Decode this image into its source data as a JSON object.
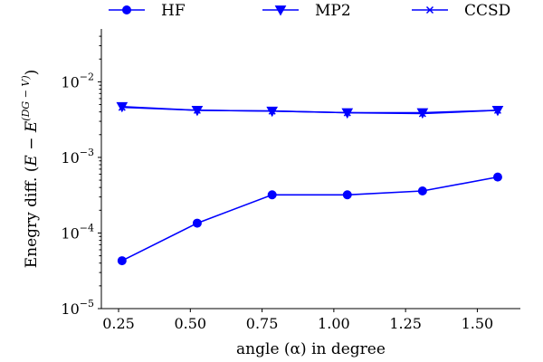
{
  "chart_data": {
    "type": "line",
    "xlabel": "angle (α) in degree",
    "ylabel": "Enegry diff. (E − E^(DG−V))",
    "ylabel_parts": {
      "main": "Enegry diff. (",
      "e1": "E",
      "minus": " − ",
      "e2": "E",
      "sup": "(DG − V)",
      "close": ")"
    },
    "yscale": "log",
    "xlim": [
      0.19,
      1.65
    ],
    "ylim": [
      1e-05,
      0.05
    ],
    "grid": false,
    "legend_position": "top, above plot",
    "xticks": [
      {
        "value": 0.25,
        "label": "0.25"
      },
      {
        "value": 0.5,
        "label": "0.50"
      },
      {
        "value": 0.75,
        "label": "0.75"
      },
      {
        "value": 1.0,
        "label": "1.00"
      },
      {
        "value": 1.25,
        "label": "1.25"
      },
      {
        "value": 1.5,
        "label": "1.50"
      }
    ],
    "yticks": [
      {
        "value": 1e-05,
        "base": "10",
        "exp": "−5"
      },
      {
        "value": 0.0001,
        "base": "10",
        "exp": "−4"
      },
      {
        "value": 0.001,
        "base": "10",
        "exp": "−3"
      },
      {
        "value": 0.01,
        "base": "10",
        "exp": "−2"
      }
    ],
    "x": [
      0.262,
      0.524,
      0.785,
      1.047,
      1.309,
      1.571
    ],
    "series": [
      {
        "name": "HF",
        "marker": "circle",
        "color": "#0000ff",
        "values": [
          4.3e-05,
          0.000135,
          0.00032,
          0.00032,
          0.00036,
          0.00055
        ]
      },
      {
        "name": "MP2",
        "marker": "triangle-down",
        "color": "#0000ff",
        "values": [
          0.0047,
          0.0042,
          0.0041,
          0.0039,
          0.0039,
          0.0042
        ]
      },
      {
        "name": "CCSD",
        "marker": "x",
        "color": "#0000ff",
        "values": [
          0.0046,
          0.0042,
          0.0041,
          0.0039,
          0.0038,
          0.0042
        ]
      }
    ]
  }
}
